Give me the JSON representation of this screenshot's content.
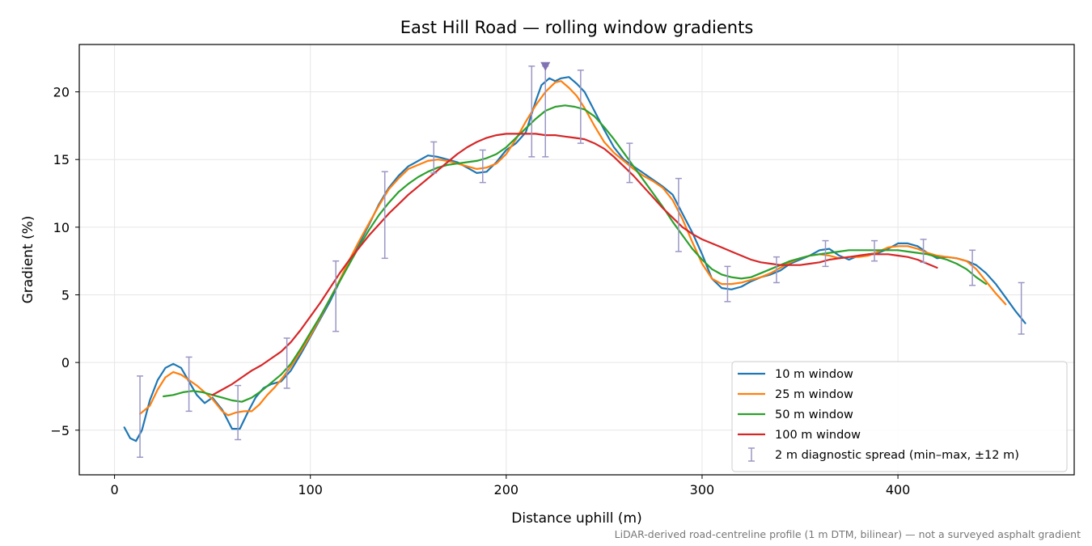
{
  "chart_data": {
    "type": "line",
    "title": "East Hill Road — rolling window gradients",
    "xlabel": "Distance uphill (m)",
    "ylabel": "Gradient (%)",
    "xlim": [
      -18,
      490
    ],
    "ylim": [
      -8.3,
      23.5
    ],
    "xticks": [
      0,
      100,
      200,
      300,
      400
    ],
    "yticks": [
      -5,
      0,
      5,
      10,
      15,
      20
    ],
    "grid": true,
    "legend_position": "lower-right",
    "footnote": "LiDAR-derived road-centreline profile (1 m DTM, bilinear) — not a surveyed asphalt gradient",
    "peak_marker": {
      "x": 220,
      "y": 21.9,
      "color": "#8172b3"
    },
    "series": [
      {
        "name": "10 m window",
        "color": "#1f77b4",
        "x": [
          5,
          8,
          11,
          14,
          18,
          22,
          26,
          30,
          34,
          38,
          42,
          46,
          50,
          55,
          60,
          64,
          68,
          72,
          76,
          80,
          85,
          90,
          95,
          100,
          105,
          110,
          115,
          120,
          125,
          130,
          135,
          140,
          145,
          150,
          155,
          160,
          165,
          170,
          175,
          180,
          185,
          190,
          195,
          200,
          205,
          210,
          215,
          218,
          222,
          225,
          228,
          232,
          236,
          240,
          245,
          250,
          255,
          260,
          265,
          270,
          275,
          280,
          285,
          290,
          295,
          300,
          305,
          310,
          315,
          320,
          325,
          330,
          335,
          340,
          345,
          350,
          355,
          360,
          365,
          370,
          375,
          380,
          385,
          390,
          395,
          400,
          405,
          410,
          415,
          420,
          425,
          430,
          435,
          440,
          445,
          450,
          455,
          460,
          465
        ],
        "y": [
          -4.8,
          -5.6,
          -5.8,
          -5.0,
          -2.8,
          -1.3,
          -0.4,
          -0.1,
          -0.4,
          -1.4,
          -2.4,
          -3.0,
          -2.6,
          -3.5,
          -4.9,
          -4.9,
          -3.7,
          -2.6,
          -1.9,
          -1.6,
          -1.4,
          -0.6,
          0.6,
          1.9,
          3.2,
          4.5,
          6.0,
          7.4,
          8.8,
          10.2,
          11.7,
          12.9,
          13.8,
          14.5,
          14.9,
          15.3,
          15.2,
          15.0,
          14.8,
          14.4,
          14.0,
          14.1,
          14.8,
          15.7,
          16.2,
          17.0,
          19.3,
          20.5,
          21.0,
          20.8,
          21.0,
          21.1,
          20.6,
          20.0,
          18.6,
          17.2,
          15.9,
          15.0,
          14.5,
          14.0,
          13.5,
          13.0,
          12.4,
          11.0,
          9.6,
          8.0,
          6.2,
          5.5,
          5.4,
          5.6,
          6.0,
          6.3,
          6.5,
          6.8,
          7.3,
          7.6,
          7.9,
          8.3,
          8.4,
          7.9,
          7.6,
          7.9,
          8.0,
          8.1,
          8.4,
          8.8,
          8.8,
          8.6,
          8.1,
          7.7,
          7.8,
          7.7,
          7.5,
          7.2,
          6.6,
          5.8,
          4.8,
          3.8,
          2.9
        ]
      },
      {
        "name": "25 m window",
        "color": "#ff7f0e",
        "x": [
          13,
          18,
          22,
          26,
          30,
          34,
          38,
          42,
          46,
          50,
          55,
          58,
          62,
          66,
          70,
          74,
          78,
          82,
          86,
          90,
          95,
          100,
          105,
          110,
          115,
          120,
          125,
          130,
          135,
          140,
          145,
          150,
          155,
          160,
          165,
          170,
          175,
          180,
          185,
          190,
          195,
          200,
          205,
          210,
          215,
          220,
          225,
          228,
          232,
          236,
          240,
          245,
          250,
          255,
          260,
          265,
          270,
          275,
          280,
          285,
          290,
          295,
          300,
          305,
          310,
          315,
          320,
          325,
          330,
          335,
          340,
          345,
          350,
          355,
          360,
          365,
          370,
          375,
          380,
          385,
          390,
          395,
          400,
          405,
          410,
          415,
          420,
          425,
          430,
          435,
          440,
          445,
          450,
          455
        ],
        "y": [
          -3.8,
          -3.2,
          -2.0,
          -1.1,
          -0.7,
          -0.9,
          -1.3,
          -1.7,
          -2.2,
          -2.7,
          -3.6,
          -3.9,
          -3.7,
          -3.6,
          -3.6,
          -3.1,
          -2.4,
          -1.8,
          -1.1,
          -0.3,
          0.8,
          2.0,
          3.3,
          4.7,
          6.1,
          7.6,
          9.0,
          10.3,
          11.6,
          12.8,
          13.6,
          14.3,
          14.6,
          14.9,
          15.0,
          14.9,
          14.7,
          14.5,
          14.3,
          14.4,
          14.7,
          15.4,
          16.5,
          17.8,
          19.0,
          20.0,
          20.7,
          20.8,
          20.3,
          19.7,
          18.8,
          17.5,
          16.3,
          15.5,
          14.9,
          14.3,
          13.8,
          13.4,
          12.9,
          12.0,
          10.6,
          8.9,
          7.3,
          6.2,
          5.8,
          5.8,
          5.9,
          6.1,
          6.3,
          6.6,
          7.0,
          7.4,
          7.7,
          7.9,
          8.0,
          7.9,
          7.7,
          7.8,
          7.8,
          7.9,
          8.2,
          8.5,
          8.6,
          8.6,
          8.4,
          8.1,
          7.9,
          7.8,
          7.7,
          7.5,
          6.9,
          6.0,
          5.1,
          4.3
        ]
      },
      {
        "name": "50 m window",
        "color": "#2ca02c",
        "x": [
          25,
          30,
          35,
          40,
          45,
          50,
          55,
          60,
          65,
          70,
          75,
          80,
          85,
          90,
          95,
          100,
          105,
          110,
          115,
          120,
          125,
          130,
          135,
          140,
          145,
          150,
          155,
          160,
          165,
          170,
          175,
          180,
          185,
          190,
          195,
          200,
          205,
          210,
          215,
          220,
          225,
          230,
          235,
          240,
          245,
          250,
          255,
          260,
          265,
          270,
          275,
          280,
          285,
          290,
          295,
          300,
          305,
          310,
          315,
          320,
          325,
          330,
          335,
          340,
          345,
          350,
          355,
          360,
          365,
          370,
          375,
          380,
          385,
          390,
          395,
          400,
          405,
          410,
          415,
          420,
          425,
          430,
          435,
          440,
          445
        ],
        "y": [
          -2.5,
          -2.4,
          -2.2,
          -2.1,
          -2.2,
          -2.4,
          -2.6,
          -2.8,
          -2.9,
          -2.6,
          -2.1,
          -1.5,
          -0.9,
          -0.1,
          1.0,
          2.2,
          3.4,
          4.7,
          6.0,
          7.3,
          8.6,
          9.8,
          10.9,
          11.8,
          12.6,
          13.2,
          13.7,
          14.1,
          14.4,
          14.6,
          14.7,
          14.8,
          14.9,
          15.1,
          15.4,
          15.9,
          16.6,
          17.3,
          18.0,
          18.6,
          18.9,
          19.0,
          18.9,
          18.7,
          18.2,
          17.4,
          16.5,
          15.5,
          14.5,
          13.5,
          12.5,
          11.5,
          10.4,
          9.4,
          8.4,
          7.6,
          6.9,
          6.5,
          6.3,
          6.2,
          6.3,
          6.6,
          6.9,
          7.2,
          7.5,
          7.7,
          7.9,
          8.0,
          8.1,
          8.2,
          8.3,
          8.3,
          8.3,
          8.3,
          8.3,
          8.3,
          8.2,
          8.1,
          8.0,
          7.8,
          7.6,
          7.3,
          6.9,
          6.3,
          5.8
        ]
      },
      {
        "name": "100 m window",
        "color": "#d62728",
        "x": [
          50,
          55,
          60,
          65,
          70,
          75,
          80,
          85,
          90,
          95,
          100,
          105,
          110,
          115,
          120,
          125,
          130,
          135,
          140,
          145,
          150,
          155,
          160,
          165,
          170,
          175,
          180,
          185,
          190,
          195,
          200,
          205,
          210,
          215,
          220,
          225,
          230,
          235,
          240,
          245,
          250,
          255,
          260,
          265,
          270,
          275,
          280,
          285,
          290,
          295,
          300,
          305,
          310,
          315,
          320,
          325,
          330,
          335,
          340,
          345,
          350,
          355,
          360,
          365,
          370,
          375,
          380,
          385,
          390,
          395,
          400,
          405,
          410,
          415,
          420
        ],
        "y": [
          -2.4,
          -2.0,
          -1.6,
          -1.1,
          -0.6,
          -0.2,
          0.3,
          0.8,
          1.5,
          2.4,
          3.4,
          4.4,
          5.5,
          6.6,
          7.6,
          8.5,
          9.4,
          10.2,
          11.0,
          11.7,
          12.4,
          13.0,
          13.6,
          14.2,
          14.8,
          15.4,
          15.9,
          16.3,
          16.6,
          16.8,
          16.9,
          16.9,
          16.9,
          16.9,
          16.8,
          16.8,
          16.7,
          16.6,
          16.5,
          16.2,
          15.8,
          15.2,
          14.5,
          13.8,
          13.0,
          12.2,
          11.4,
          10.7,
          10.0,
          9.5,
          9.1,
          8.8,
          8.5,
          8.2,
          7.9,
          7.6,
          7.4,
          7.3,
          7.2,
          7.2,
          7.2,
          7.3,
          7.4,
          7.6,
          7.7,
          7.8,
          7.9,
          8.0,
          8.0,
          8.0,
          7.9,
          7.8,
          7.6,
          7.3,
          7.0
        ]
      }
    ],
    "error_bars": {
      "name": "2 m diagnostic spread (min–max, ±12 m)",
      "color": "#9a97c4",
      "points": [
        {
          "x": 13,
          "low": -7.0,
          "high": -1.0
        },
        {
          "x": 38,
          "low": -3.6,
          "high": 0.4
        },
        {
          "x": 63,
          "low": -5.7,
          "high": -1.7
        },
        {
          "x": 88,
          "low": -1.9,
          "high": 1.8
        },
        {
          "x": 113,
          "low": 2.3,
          "high": 7.5
        },
        {
          "x": 138,
          "low": 7.7,
          "high": 14.1
        },
        {
          "x": 163,
          "low": 14.0,
          "high": 16.3
        },
        {
          "x": 188,
          "low": 13.3,
          "high": 15.7
        },
        {
          "x": 213,
          "low": 15.2,
          "high": 21.9
        },
        {
          "x": 220,
          "low": 15.2,
          "high": 21.9
        },
        {
          "x": 238,
          "low": 16.2,
          "high": 21.6
        },
        {
          "x": 263,
          "low": 13.3,
          "high": 16.2
        },
        {
          "x": 288,
          "low": 8.2,
          "high": 13.6
        },
        {
          "x": 313,
          "low": 4.5,
          "high": 7.1
        },
        {
          "x": 338,
          "low": 5.9,
          "high": 7.8
        },
        {
          "x": 363,
          "low": 7.1,
          "high": 9.0
        },
        {
          "x": 388,
          "low": 7.5,
          "high": 9.0
        },
        {
          "x": 413,
          "low": 7.4,
          "high": 9.1
        },
        {
          "x": 438,
          "low": 5.7,
          "high": 8.3
        },
        {
          "x": 463,
          "low": 2.1,
          "high": 5.9
        }
      ]
    }
  }
}
